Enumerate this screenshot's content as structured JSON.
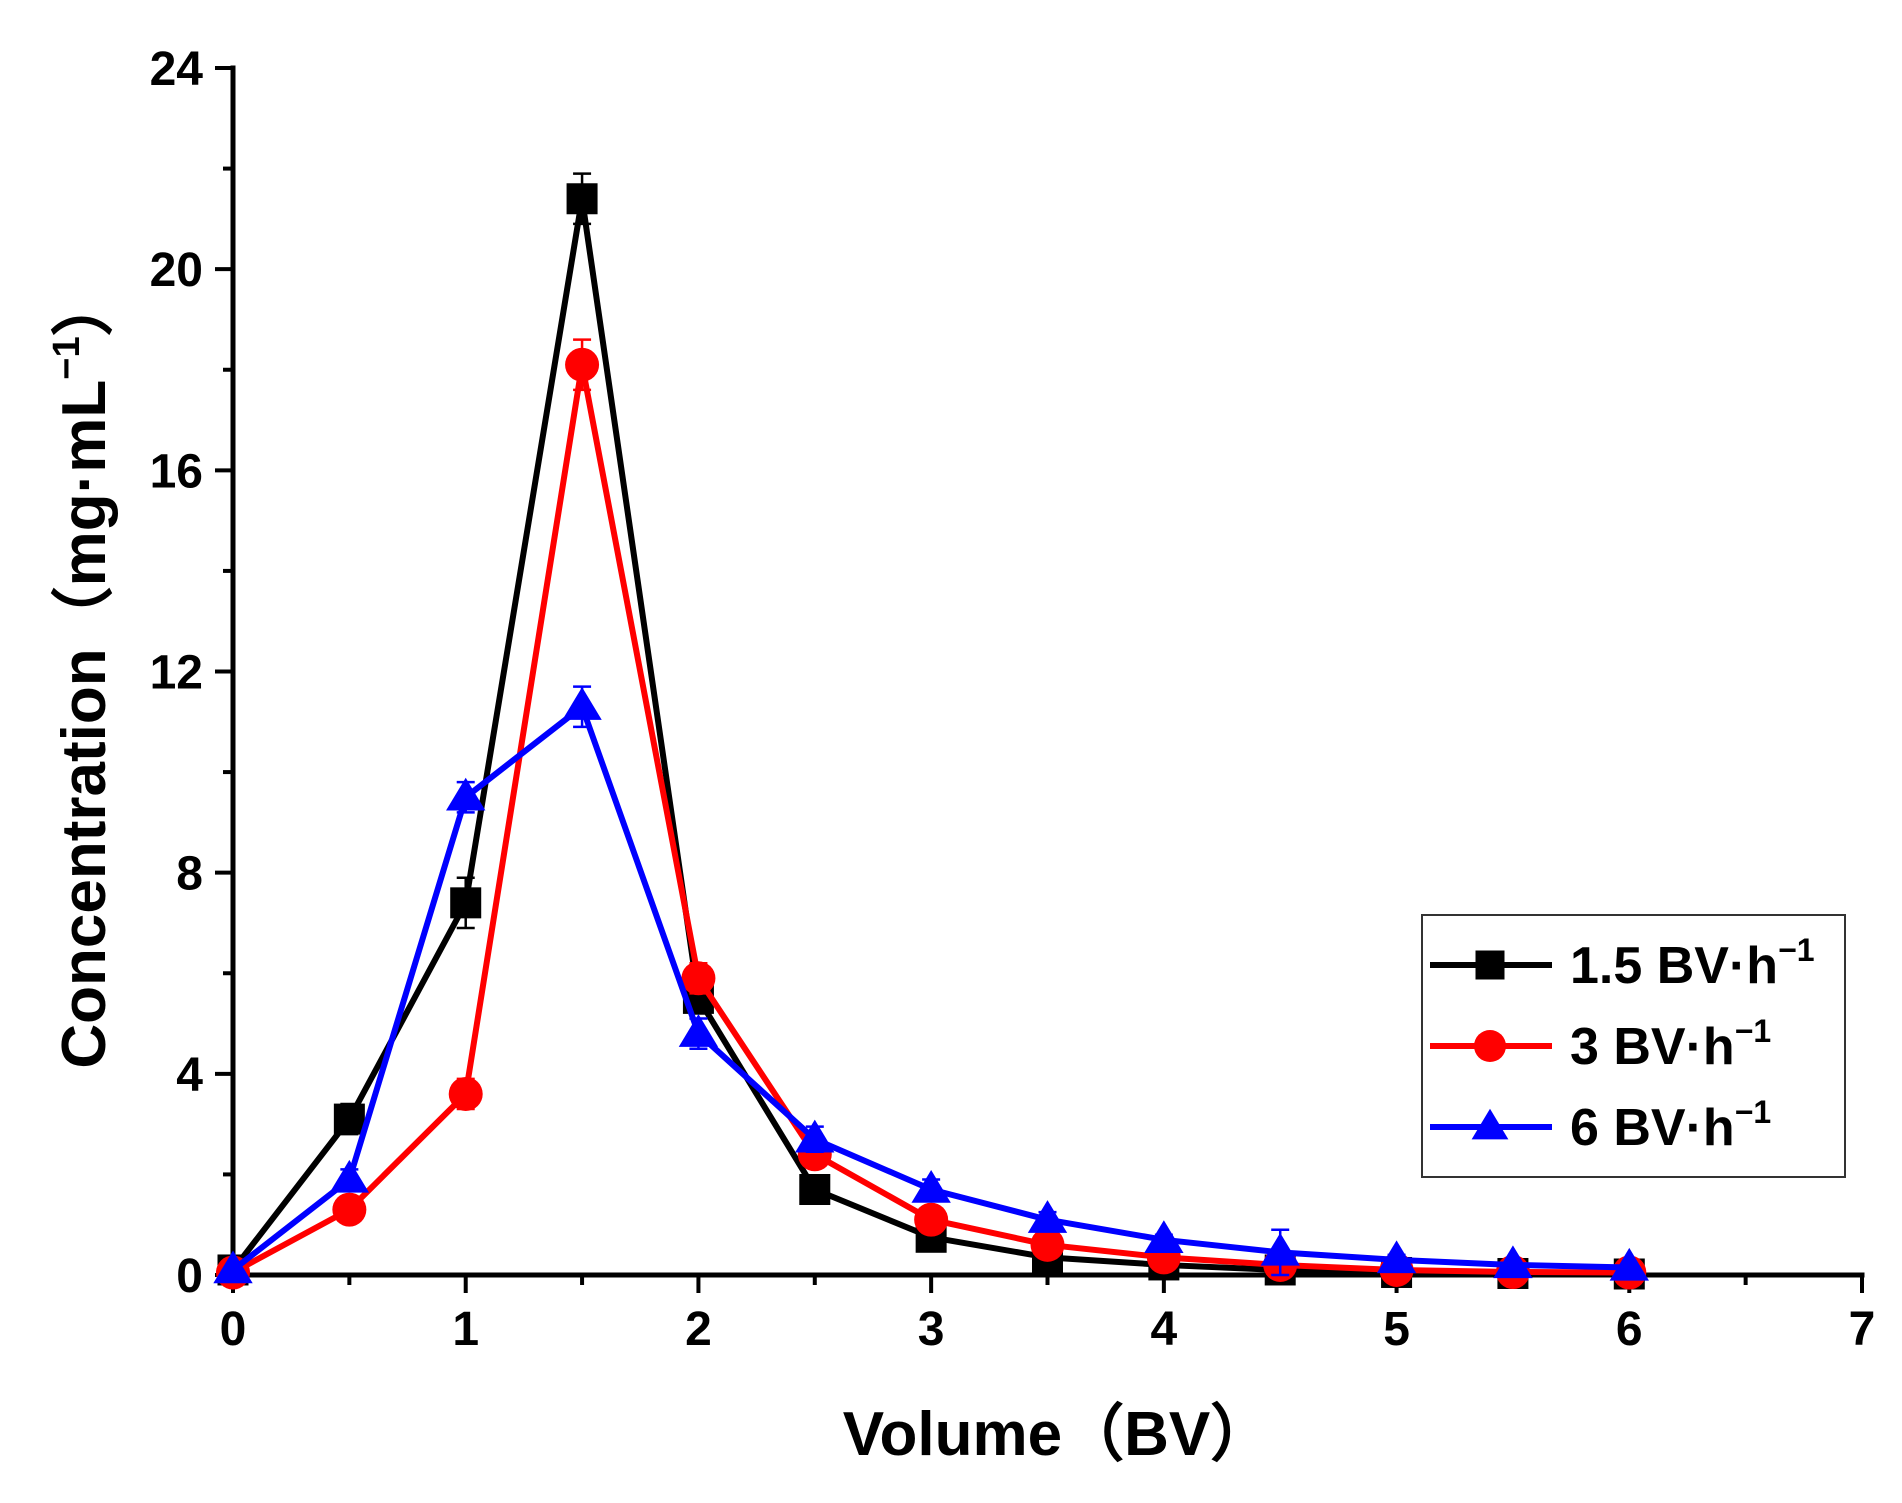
{
  "chart_data": {
    "type": "line",
    "title": "",
    "xlabel": "Volume（BV）",
    "ylabel": {
      "main": "Concentration（mg·mL",
      "sup": "−1",
      "close": "）"
    },
    "xlim": [
      0,
      7
    ],
    "ylim": [
      0,
      24
    ],
    "x_ticks": [
      "0",
      "1",
      "2",
      "3",
      "4",
      "5",
      "6",
      "7"
    ],
    "x_tick_values": [
      0,
      1,
      2,
      3,
      4,
      5,
      6,
      7
    ],
    "y_ticks": [
      "0",
      "4",
      "8",
      "12",
      "16",
      "20",
      "24"
    ],
    "y_tick_values": [
      0,
      4,
      8,
      12,
      16,
      20,
      24
    ],
    "grid": false,
    "legend_position": "right",
    "x": [
      0,
      0.5,
      1,
      1.5,
      2,
      2.5,
      3,
      3.5,
      4,
      4.5,
      5,
      5.5,
      6
    ],
    "series": [
      {
        "name": "1.5 BV·h",
        "name_sup": "−1",
        "color": "#000000",
        "marker": "square",
        "values": [
          0.1,
          3.1,
          7.4,
          21.4,
          5.5,
          1.7,
          0.75,
          0.35,
          0.2,
          0.1,
          0.05,
          0.03,
          0.02
        ],
        "errors": [
          0.05,
          0.3,
          0.5,
          0.5,
          0.3,
          0.15,
          0.1,
          0.05,
          0.05,
          0.03,
          0.02,
          0.02,
          0.02
        ]
      },
      {
        "name": "3 BV·h",
        "name_sup": "−1",
        "color": "#ff0000",
        "marker": "circle",
        "values": [
          0.05,
          1.3,
          3.6,
          18.1,
          5.9,
          2.4,
          1.1,
          0.6,
          0.35,
          0.2,
          0.1,
          0.06,
          0.05
        ],
        "errors": [
          0.05,
          0.2,
          0.3,
          0.5,
          0.3,
          0.2,
          0.1,
          0.08,
          0.05,
          0.04,
          0.03,
          0.02,
          0.02
        ]
      },
      {
        "name": "6 BV·h",
        "name_sup": "−1",
        "color": "#0000ff",
        "marker": "triangle",
        "values": [
          0.1,
          1.9,
          9.5,
          11.3,
          4.8,
          2.7,
          1.7,
          1.1,
          0.7,
          0.45,
          0.3,
          0.2,
          0.15
        ],
        "errors": [
          0.05,
          0.2,
          0.3,
          0.4,
          0.3,
          0.25,
          0.2,
          0.15,
          0.1,
          0.45,
          0.1,
          0.05,
          0.05
        ]
      }
    ]
  }
}
